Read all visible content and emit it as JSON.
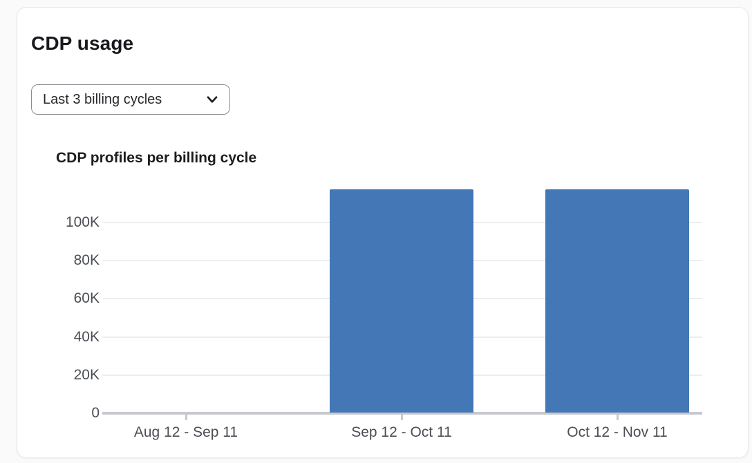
{
  "card": {
    "title": "CDP usage",
    "filter_dropdown": {
      "selected": "Last 3 billing cycles"
    }
  },
  "chart_data": {
    "type": "bar",
    "title": "CDP profiles per billing cycle",
    "categories": [
      "Aug 12 - Sep 11",
      "Sep 12 - Oct 11",
      "Oct 12 - Nov 11"
    ],
    "values": [
      0,
      117000,
      117000
    ],
    "ytick_values": [
      0,
      20000,
      40000,
      60000,
      80000,
      100000
    ],
    "ytick_labels": [
      "0",
      "20K",
      "40K",
      "60K",
      "80K",
      "100K"
    ],
    "ylim": [
      0,
      120000
    ],
    "xlabel": "",
    "ylabel": "",
    "grid": "horizontal",
    "legend": false,
    "bar_color": "#4377B6"
  },
  "colors": {
    "bar": "#4377B6",
    "page_background": "#FAFAFB",
    "card_background": "#FFFFFF",
    "card_border": "#E5E6E8",
    "gridline": "#ECEDEF",
    "axis_line": "#C6C9CE",
    "axis_text": "#4B4E54"
  }
}
